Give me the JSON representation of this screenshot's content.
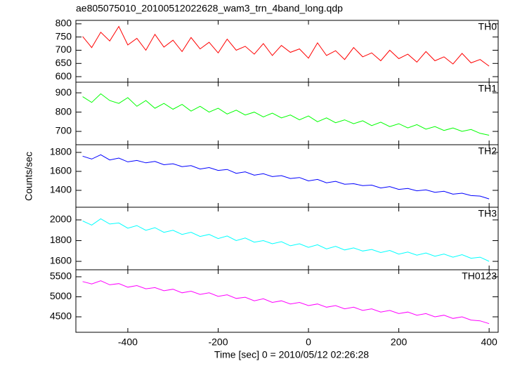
{
  "title": "ae805075010_20100512022628_wam3_trn_4band_long.qdp",
  "xlabel": "Time [sec] 0 = 2010/05/12 02:26:28",
  "ylabel": "Counts/sec",
  "chart_data": [
    {
      "type": "line",
      "xlim": [
        -515,
        420
      ],
      "ylim": [
        579,
        813
      ],
      "yticks": [
        600,
        650,
        700,
        750,
        800
      ],
      "x": [
        -500,
        -480,
        -460,
        -440,
        -420,
        -400,
        -380,
        -360,
        -340,
        -320,
        -300,
        -280,
        -260,
        -240,
        -220,
        -200,
        -180,
        -160,
        -140,
        -120,
        -100,
        -80,
        -60,
        -40,
        -20,
        0,
        20,
        40,
        60,
        80,
        100,
        120,
        140,
        160,
        180,
        200,
        220,
        240,
        260,
        280,
        300,
        320,
        340,
        360,
        380,
        400
      ],
      "series": [
        {
          "name": "TH0",
          "color": "#ff0000",
          "values": [
            752,
            710,
            768,
            735,
            790,
            720,
            745,
            700,
            760,
            712,
            738,
            695,
            748,
            705,
            730,
            690,
            742,
            700,
            715,
            685,
            725,
            680,
            718,
            692,
            705,
            670,
            728,
            680,
            698,
            665,
            710,
            675,
            690,
            660,
            700,
            668,
            685,
            655,
            695,
            660,
            675,
            648,
            688,
            652,
            665,
            640
          ]
        }
      ]
    },
    {
      "type": "line",
      "xlim": [
        -515,
        420
      ],
      "ylim": [
        631,
        955
      ],
      "yticks": [
        700,
        800,
        900
      ],
      "x": [
        -500,
        -480,
        -460,
        -440,
        -420,
        -400,
        -380,
        -360,
        -340,
        -320,
        -300,
        -280,
        -260,
        -240,
        -220,
        -200,
        -180,
        -160,
        -140,
        -120,
        -100,
        -80,
        -60,
        -40,
        -20,
        0,
        20,
        40,
        60,
        80,
        100,
        120,
        140,
        160,
        180,
        200,
        220,
        240,
        260,
        280,
        300,
        320,
        340,
        360,
        380,
        400
      ],
      "series": [
        {
          "name": "TH1",
          "color": "#00ff00",
          "values": [
            880,
            850,
            895,
            860,
            845,
            875,
            830,
            860,
            820,
            845,
            815,
            840,
            805,
            830,
            800,
            820,
            790,
            810,
            785,
            800,
            775,
            795,
            770,
            785,
            760,
            780,
            750,
            770,
            745,
            760,
            740,
            755,
            730,
            748,
            725,
            740,
            718,
            735,
            712,
            725,
            705,
            718,
            700,
            710,
            690,
            680
          ]
        }
      ]
    },
    {
      "type": "line",
      "xlim": [
        -515,
        420
      ],
      "ylim": [
        1222,
        1881
      ],
      "yticks": [
        1400,
        1600,
        1800
      ],
      "x": [
        -500,
        -480,
        -460,
        -440,
        -420,
        -400,
        -380,
        -360,
        -340,
        -320,
        -300,
        -280,
        -260,
        -240,
        -220,
        -200,
        -180,
        -160,
        -140,
        -120,
        -100,
        -80,
        -60,
        -40,
        -20,
        0,
        20,
        40,
        60,
        80,
        100,
        120,
        140,
        160,
        180,
        200,
        220,
        240,
        260,
        280,
        300,
        320,
        340,
        360,
        380,
        400
      ],
      "series": [
        {
          "name": "TH2",
          "color": "#0000ff",
          "values": [
            1760,
            1730,
            1775,
            1720,
            1740,
            1700,
            1715,
            1690,
            1705,
            1670,
            1680,
            1650,
            1660,
            1625,
            1640,
            1610,
            1620,
            1580,
            1595,
            1560,
            1575,
            1545,
            1555,
            1525,
            1535,
            1500,
            1515,
            1480,
            1495,
            1465,
            1470,
            1450,
            1455,
            1425,
            1440,
            1410,
            1420,
            1395,
            1405,
            1380,
            1390,
            1360,
            1370,
            1345,
            1340,
            1310
          ]
        }
      ]
    },
    {
      "type": "line",
      "xlim": [
        -515,
        420
      ],
      "ylim": [
        1519,
        2122
      ],
      "yticks": [
        1600,
        1800,
        2000
      ],
      "x": [
        -500,
        -480,
        -460,
        -440,
        -420,
        -400,
        -380,
        -360,
        -340,
        -320,
        -300,
        -280,
        -260,
        -240,
        -220,
        -200,
        -180,
        -160,
        -140,
        -120,
        -100,
        -80,
        -60,
        -40,
        -20,
        0,
        20,
        40,
        60,
        80,
        100,
        120,
        140,
        160,
        180,
        200,
        220,
        240,
        260,
        280,
        300,
        320,
        340,
        360,
        380,
        400
      ],
      "series": [
        {
          "name": "TH3",
          "color": "#00ffff",
          "values": [
            1990,
            1950,
            2010,
            1960,
            1970,
            1920,
            1945,
            1900,
            1925,
            1880,
            1900,
            1860,
            1880,
            1840,
            1860,
            1820,
            1845,
            1800,
            1825,
            1785,
            1800,
            1770,
            1790,
            1750,
            1770,
            1735,
            1760,
            1720,
            1745,
            1710,
            1730,
            1700,
            1715,
            1685,
            1705,
            1670,
            1690,
            1660,
            1680,
            1650,
            1670,
            1640,
            1665,
            1630,
            1640,
            1600
          ]
        }
      ]
    },
    {
      "type": "line",
      "xlim": [
        -515,
        420
      ],
      "ylim": [
        4114,
        5675
      ],
      "yticks": [
        4500,
        5000,
        5500
      ],
      "xticks": [
        -400,
        -200,
        0,
        200,
        400
      ],
      "x": [
        -500,
        -480,
        -460,
        -440,
        -420,
        -400,
        -380,
        -360,
        -340,
        -320,
        -300,
        -280,
        -260,
        -240,
        -220,
        -200,
        -180,
        -160,
        -140,
        -120,
        -100,
        -80,
        -60,
        -40,
        -20,
        0,
        20,
        40,
        60,
        80,
        100,
        120,
        140,
        160,
        180,
        200,
        220,
        240,
        260,
        280,
        300,
        320,
        340,
        360,
        380,
        400
      ],
      "series": [
        {
          "name": "TH0123",
          "color": "#ff00ff",
          "values": [
            5380,
            5320,
            5400,
            5300,
            5330,
            5240,
            5280,
            5200,
            5230,
            5150,
            5190,
            5100,
            5140,
            5060,
            5100,
            5010,
            5050,
            4960,
            4990,
            4900,
            4950,
            4860,
            4900,
            4820,
            4860,
            4780,
            4820,
            4740,
            4780,
            4700,
            4740,
            4660,
            4700,
            4620,
            4660,
            4580,
            4620,
            4540,
            4580,
            4500,
            4540,
            4460,
            4500,
            4420,
            4400,
            4330
          ]
        }
      ]
    }
  ]
}
